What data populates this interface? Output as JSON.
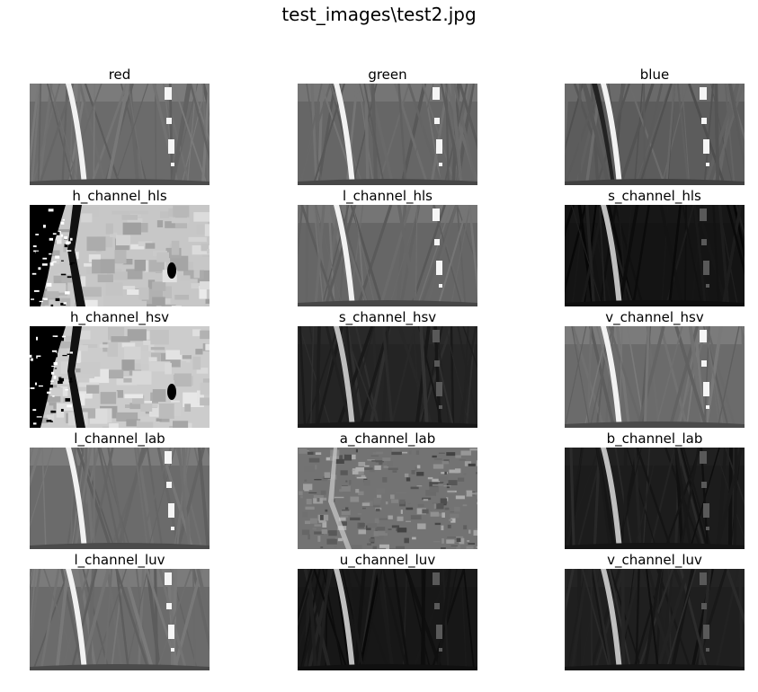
{
  "figure": {
    "title": "test_images\\test2.jpg"
  },
  "panels": [
    {
      "title": "red",
      "style": "gray",
      "brightness": 0.42,
      "contrast": 1.0
    },
    {
      "title": "green",
      "style": "gray",
      "brightness": 0.4,
      "contrast": 1.0
    },
    {
      "title": "blue",
      "style": "blue",
      "brightness": 0.36,
      "contrast": 0.95
    },
    {
      "title": "h_channel_hls",
      "style": "hue",
      "brightness": 0.78,
      "contrast": 1.0
    },
    {
      "title": "l_channel_hls",
      "style": "gray",
      "brightness": 0.4,
      "contrast": 1.0
    },
    {
      "title": "s_channel_hls",
      "style": "dark",
      "brightness": 0.08,
      "contrast": 1.0
    },
    {
      "title": "h_channel_hsv",
      "style": "hue",
      "brightness": 0.8,
      "contrast": 1.0
    },
    {
      "title": "s_channel_hsv",
      "style": "dark",
      "brightness": 0.14,
      "contrast": 1.0
    },
    {
      "title": "v_channel_hsv",
      "style": "gray",
      "brightness": 0.42,
      "contrast": 1.0
    },
    {
      "title": "l_channel_lab",
      "style": "gray",
      "brightness": 0.42,
      "contrast": 1.0
    },
    {
      "title": "a_channel_lab",
      "style": "noise",
      "brightness": 0.45,
      "contrast": 1.0
    },
    {
      "title": "b_channel_lab",
      "style": "dark",
      "brightness": 0.11,
      "contrast": 1.0
    },
    {
      "title": "l_channel_luv",
      "style": "gray",
      "brightness": 0.42,
      "contrast": 1.0
    },
    {
      "title": "u_channel_luv",
      "style": "dark",
      "brightness": 0.09,
      "contrast": 1.0
    },
    {
      "title": "v_channel_luv",
      "style": "dark",
      "brightness": 0.12,
      "contrast": 1.0
    }
  ]
}
